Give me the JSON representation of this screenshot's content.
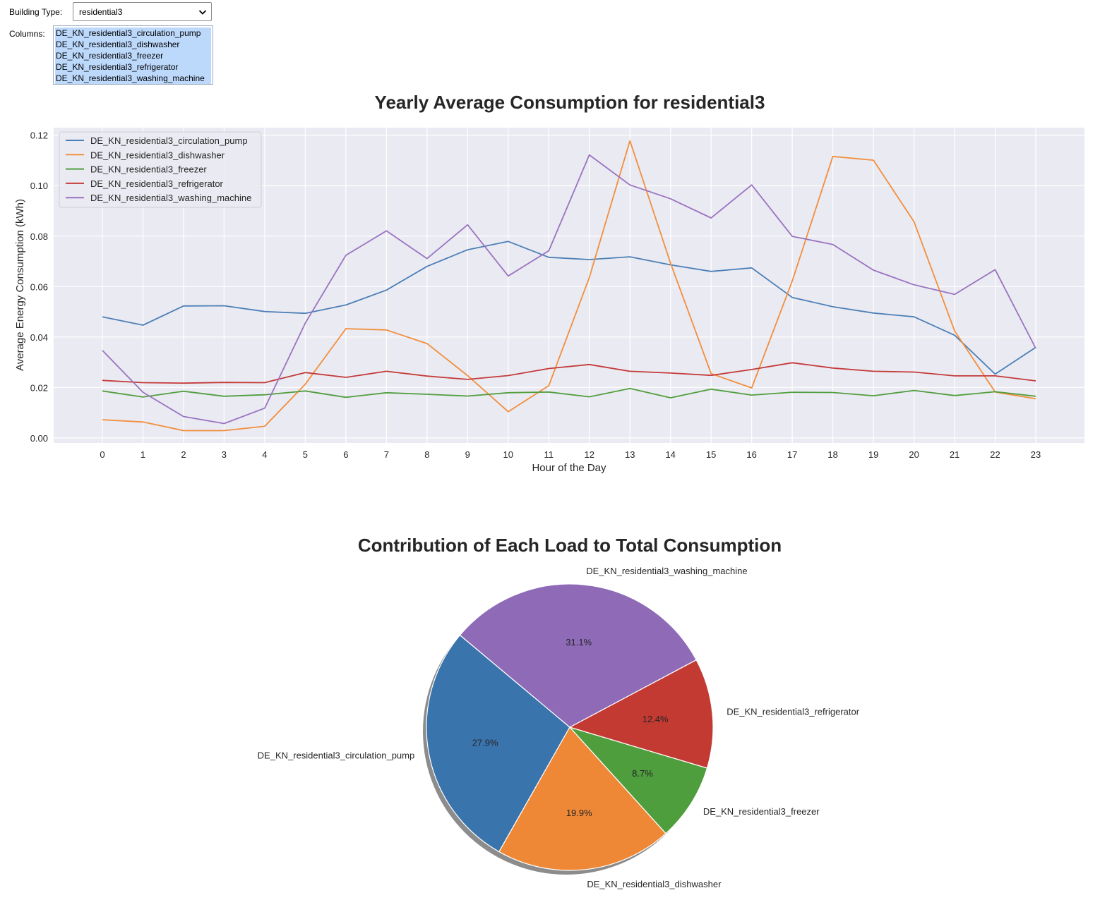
{
  "controls": {
    "building_type_label": "Building Type:",
    "building_type_value": "residential3",
    "columns_label": "Columns:",
    "columns_options": [
      "DE_KN_residential3_circulation_pump",
      "DE_KN_residential3_dishwasher",
      "DE_KN_residential3_freezer",
      "DE_KN_residential3_refrigerator",
      "DE_KN_residential3_washing_machine"
    ]
  },
  "chart_data": [
    {
      "type": "line",
      "title": "Yearly Average Consumption for residential3",
      "xlabel": "Hour of the Day",
      "ylabel": "Average Energy Consumption (kWh)",
      "x": [
        0,
        1,
        2,
        3,
        4,
        5,
        6,
        7,
        8,
        9,
        10,
        11,
        12,
        13,
        14,
        15,
        16,
        17,
        18,
        19,
        20,
        21,
        22,
        23
      ],
      "xticks": [
        "0",
        "1",
        "2",
        "3",
        "4",
        "5",
        "6",
        "7",
        "8",
        "9",
        "10",
        "11",
        "12",
        "13",
        "14",
        "15",
        "16",
        "17",
        "18",
        "19",
        "20",
        "21",
        "22",
        "23"
      ],
      "yticks": [
        "0.00",
        "0.02",
        "0.04",
        "0.06",
        "0.08",
        "0.10",
        "0.12"
      ],
      "ylim": [
        -0.002,
        0.123
      ],
      "grid": true,
      "legend_position": "upper-left",
      "series": [
        {
          "name": "DE_KN_residential3_circulation_pump",
          "color": "#4c7fb6",
          "values": [
            0.048,
            0.0447,
            0.0523,
            0.0524,
            0.0501,
            0.0494,
            0.0527,
            0.0586,
            0.068,
            0.0746,
            0.0779,
            0.0716,
            0.0707,
            0.0718,
            0.0686,
            0.066,
            0.0674,
            0.0557,
            0.052,
            0.0495,
            0.048,
            0.0407,
            0.0253,
            0.0359
          ]
        },
        {
          "name": "DE_KN_residential3_dishwasher",
          "color": "#f28e3c",
          "values": [
            0.0072,
            0.0063,
            0.0029,
            0.0029,
            0.0046,
            0.0213,
            0.0433,
            0.0428,
            0.0374,
            0.0247,
            0.0104,
            0.0207,
            0.0636,
            0.1178,
            0.0693,
            0.0255,
            0.0198,
            0.0622,
            0.1116,
            0.1101,
            0.0857,
            0.0424,
            0.0182,
            0.0155
          ]
        },
        {
          "name": "DE_KN_residential3_freezer",
          "color": "#519e3e",
          "values": [
            0.0186,
            0.0162,
            0.0185,
            0.0165,
            0.0171,
            0.0186,
            0.0161,
            0.0179,
            0.0173,
            0.0166,
            0.0179,
            0.0182,
            0.0163,
            0.0196,
            0.0159,
            0.0193,
            0.017,
            0.0181,
            0.018,
            0.0167,
            0.0188,
            0.0168,
            0.0183,
            0.0165
          ]
        },
        {
          "name": "DE_KN_residential3_refrigerator",
          "color": "#c43b3a",
          "values": [
            0.0228,
            0.0219,
            0.0217,
            0.022,
            0.0219,
            0.0259,
            0.024,
            0.0264,
            0.0245,
            0.0232,
            0.0247,
            0.0275,
            0.0291,
            0.0264,
            0.0257,
            0.0248,
            0.0271,
            0.0298,
            0.0277,
            0.0264,
            0.0261,
            0.0246,
            0.0246,
            0.0226
          ]
        },
        {
          "name": "DE_KN_residential3_washing_machine",
          "color": "#9a73c0",
          "values": [
            0.0347,
            0.0181,
            0.0085,
            0.0057,
            0.0118,
            0.0455,
            0.0724,
            0.0821,
            0.0711,
            0.0845,
            0.0642,
            0.0742,
            0.1122,
            0.1003,
            0.0948,
            0.0872,
            0.1003,
            0.0799,
            0.0767,
            0.0665,
            0.0607,
            0.0569,
            0.0667,
            0.0355
          ]
        }
      ]
    },
    {
      "type": "pie",
      "title": "Contribution of Each Load to Total Consumption",
      "shadow": true,
      "slices": [
        {
          "label": "DE_KN_residential3_circulation_pump",
          "value": 27.9,
          "pct_label": "27.9%",
          "color": "#3a74ad"
        },
        {
          "label": "DE_KN_residential3_dishwasher",
          "value": 19.9,
          "pct_label": "19.9%",
          "color": "#ee8836"
        },
        {
          "label": "DE_KN_residential3_freezer",
          "value": 8.7,
          "pct_label": "8.7%",
          "color": "#4f9e3d"
        },
        {
          "label": "DE_KN_residential3_refrigerator",
          "value": 12.4,
          "pct_label": "12.4%",
          "color": "#c33a32"
        },
        {
          "label": "DE_KN_residential3_washing_machine",
          "value": 31.1,
          "pct_label": "31.1%",
          "color": "#8e6ab7"
        }
      ]
    }
  ]
}
